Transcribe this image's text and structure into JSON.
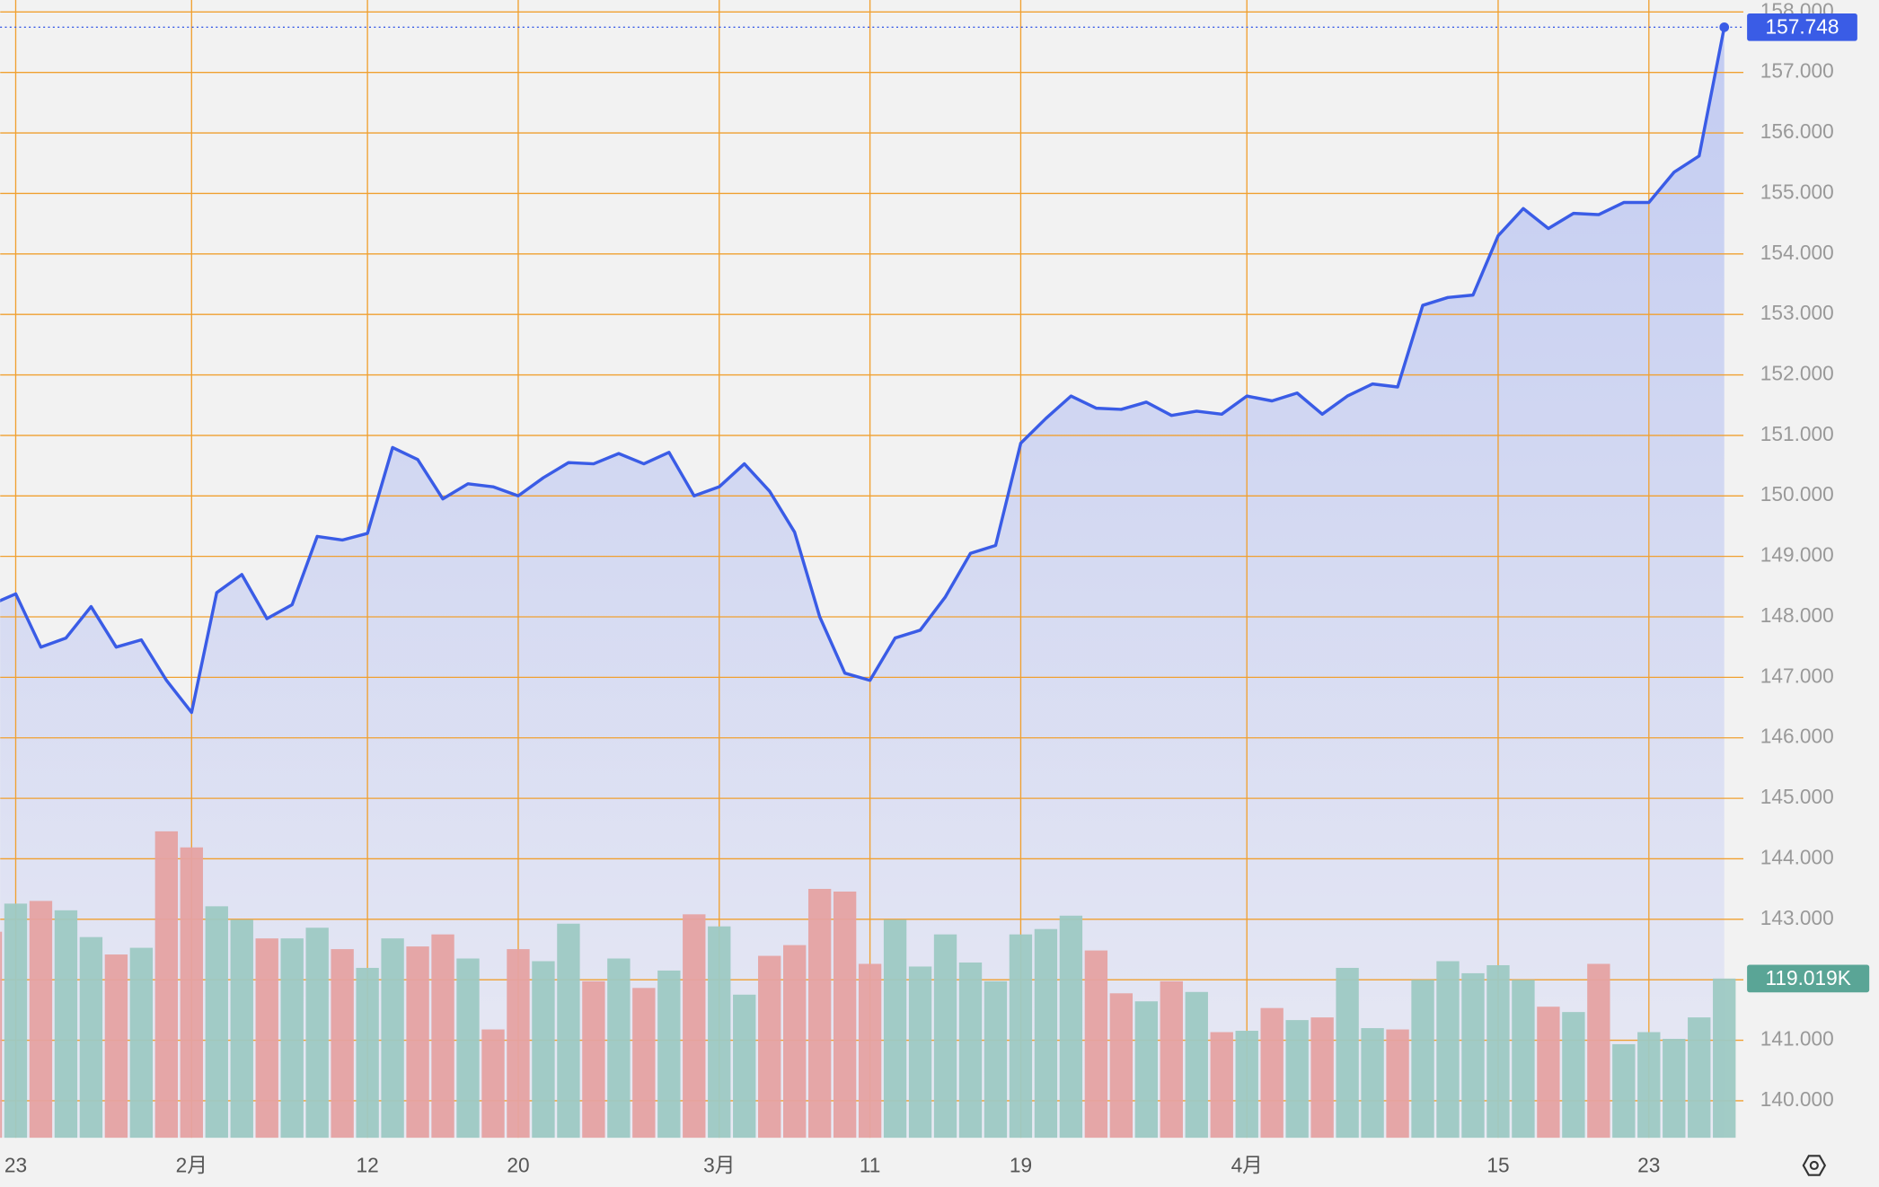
{
  "chart_data": {
    "type": "line",
    "categories": [
      null,
      "23",
      null,
      null,
      null,
      null,
      null,
      null,
      "2月",
      null,
      null,
      null,
      null,
      null,
      null,
      "12",
      null,
      null,
      null,
      null,
      null,
      "20",
      null,
      null,
      null,
      null,
      null,
      null,
      null,
      "3月",
      null,
      null,
      null,
      null,
      null,
      "11",
      null,
      null,
      null,
      null,
      null,
      "19",
      null,
      null,
      null,
      null,
      null,
      null,
      null,
      null,
      "4月",
      null,
      null,
      null,
      null,
      null,
      null,
      null,
      null,
      null,
      "15",
      null,
      null,
      null,
      null,
      null,
      "23",
      null,
      null,
      null
    ],
    "series": [
      {
        "color": "#3a5ce6",
        "values": [
          148.2,
          148.38,
          147.5,
          147.65,
          148.17,
          147.5,
          147.62,
          146.95,
          146.42,
          148.4,
          148.7,
          147.97,
          148.2,
          149.33,
          149.27,
          149.38,
          150.8,
          150.6,
          149.95,
          150.2,
          150.15,
          150.0,
          150.3,
          150.55,
          150.53,
          150.7,
          150.53,
          150.72,
          150.0,
          150.15,
          150.53,
          150.08,
          149.4,
          148.0,
          147.07,
          146.95,
          147.65,
          147.78,
          148.33,
          149.05,
          149.18,
          150.87,
          151.28,
          151.65,
          151.45,
          151.43,
          151.55,
          151.33,
          151.4,
          151.35,
          151.65,
          151.57,
          151.7,
          151.35,
          151.65,
          151.85,
          151.8,
          153.15,
          153.28,
          153.32,
          154.3,
          154.75,
          154.42,
          154.67,
          154.65,
          154.85,
          154.85,
          155.35,
          155.62,
          157.748
        ]
      },
      {
        "type": "bar",
        "axis": "y2",
        "label_color": "#5aa596",
        "colors": [
          "#e5a2a2",
          "#9dc9c3",
          "#e5a2a2",
          "#9dc9c3",
          "#9dc9c3",
          "#e5a2a2",
          "#9dc9c3",
          "#e5a2a2",
          "#e5a2a2",
          "#9dc9c3",
          "#9dc9c3",
          "#e5a2a2",
          "#9dc9c3",
          "#9dc9c3",
          "#e5a2a2",
          "#9dc9c3",
          "#9dc9c3",
          "#e5a2a2",
          "#e5a2a2",
          "#9dc9c3",
          "#e5a2a2",
          "#e5a2a2",
          "#9dc9c3",
          "#9dc9c3",
          "#e5a2a2",
          "#9dc9c3",
          "#e5a2a2",
          "#9dc9c3",
          "#e5a2a2",
          "#9dc9c3",
          "#9dc9c3",
          "#e5a2a2",
          "#e5a2a2",
          "#e5a2a2",
          "#e5a2a2",
          "#e5a2a2",
          "#9dc9c3",
          "#9dc9c3",
          "#9dc9c3",
          "#9dc9c3",
          "#9dc9c3",
          "#9dc9c3",
          "#9dc9c3",
          "#9dc9c3",
          "#e5a2a2",
          "#e5a2a2",
          "#9dc9c3",
          "#e5a2a2",
          "#9dc9c3",
          "#e5a2a2",
          "#9dc9c3",
          "#e5a2a2",
          "#9dc9c3",
          "#e5a2a2",
          "#9dc9c3",
          "#9dc9c3",
          "#e5a2a2",
          "#9dc9c3",
          "#9dc9c3",
          "#9dc9c3",
          "#9dc9c3",
          "#9dc9c3",
          "#e5a2a2",
          "#9dc9c3",
          "#e5a2a2",
          "#9dc9c3",
          "#9dc9c3",
          "#9dc9c3",
          "#9dc9c3",
          "#9dc9c3"
        ],
        "values": [
          154,
          175,
          177,
          170,
          150,
          137,
          142,
          229,
          217,
          173,
          163,
          149,
          149,
          157,
          141,
          127,
          149,
          143,
          152,
          134,
          81,
          141,
          132,
          160,
          117,
          134,
          112,
          125,
          167,
          158,
          107,
          136,
          144,
          186,
          184,
          130,
          163,
          128,
          152,
          131,
          117,
          152,
          156,
          166,
          140,
          108,
          102,
          117,
          109,
          79,
          80,
          97,
          88,
          90,
          127,
          82,
          81,
          118,
          132,
          123,
          129,
          118,
          98,
          94,
          130,
          70,
          79,
          74,
          90,
          119.019
        ],
        "value_labels": [
          null,
          null,
          null,
          null,
          null,
          null,
          null,
          null,
          null,
          null,
          null,
          null,
          null,
          null,
          null,
          null,
          null,
          null,
          null,
          null,
          null,
          null,
          null,
          null,
          null,
          null,
          null,
          null,
          null,
          null,
          null,
          null,
          null,
          null,
          null,
          null,
          null,
          null,
          null,
          null,
          null,
          null,
          null,
          null,
          null,
          null,
          null,
          null,
          null,
          null,
          null,
          null,
          null,
          null,
          null,
          null,
          null,
          null,
          null,
          null,
          null,
          null,
          null,
          null,
          null,
          null,
          null,
          null,
          null,
          "119.019K"
        ]
      }
    ],
    "ylim": [
      139.386,
      158.198
    ],
    "yticks": [
      {
        "value": 140,
        "label": "140.000"
      },
      {
        "value": 141,
        "label": "141.000"
      },
      {
        "value": 142,
        "label": "142.000"
      },
      {
        "value": 143,
        "label": "143.000"
      },
      {
        "value": 144,
        "label": "144.000"
      },
      {
        "value": 145,
        "label": "145.000"
      },
      {
        "value": 146,
        "label": "146.000"
      },
      {
        "value": 147,
        "label": "147.000"
      },
      {
        "value": 148,
        "label": "148.000"
      },
      {
        "value": 149,
        "label": "149.000"
      },
      {
        "value": 150,
        "label": "150.000"
      },
      {
        "value": 151,
        "label": "151.000"
      },
      {
        "value": 152,
        "label": "152.000"
      },
      {
        "value": 153,
        "label": "153.000"
      },
      {
        "value": 154,
        "label": "154.000"
      },
      {
        "value": 155,
        "label": "155.000"
      },
      {
        "value": 156,
        "label": "156.000"
      },
      {
        "value": 157,
        "label": "157.000"
      },
      {
        "value": 158,
        "label": "158.000"
      }
    ],
    "y2lim": [
      0,
      850
    ],
    "grid": true,
    "grid_color": "#f0a030"
  }
}
